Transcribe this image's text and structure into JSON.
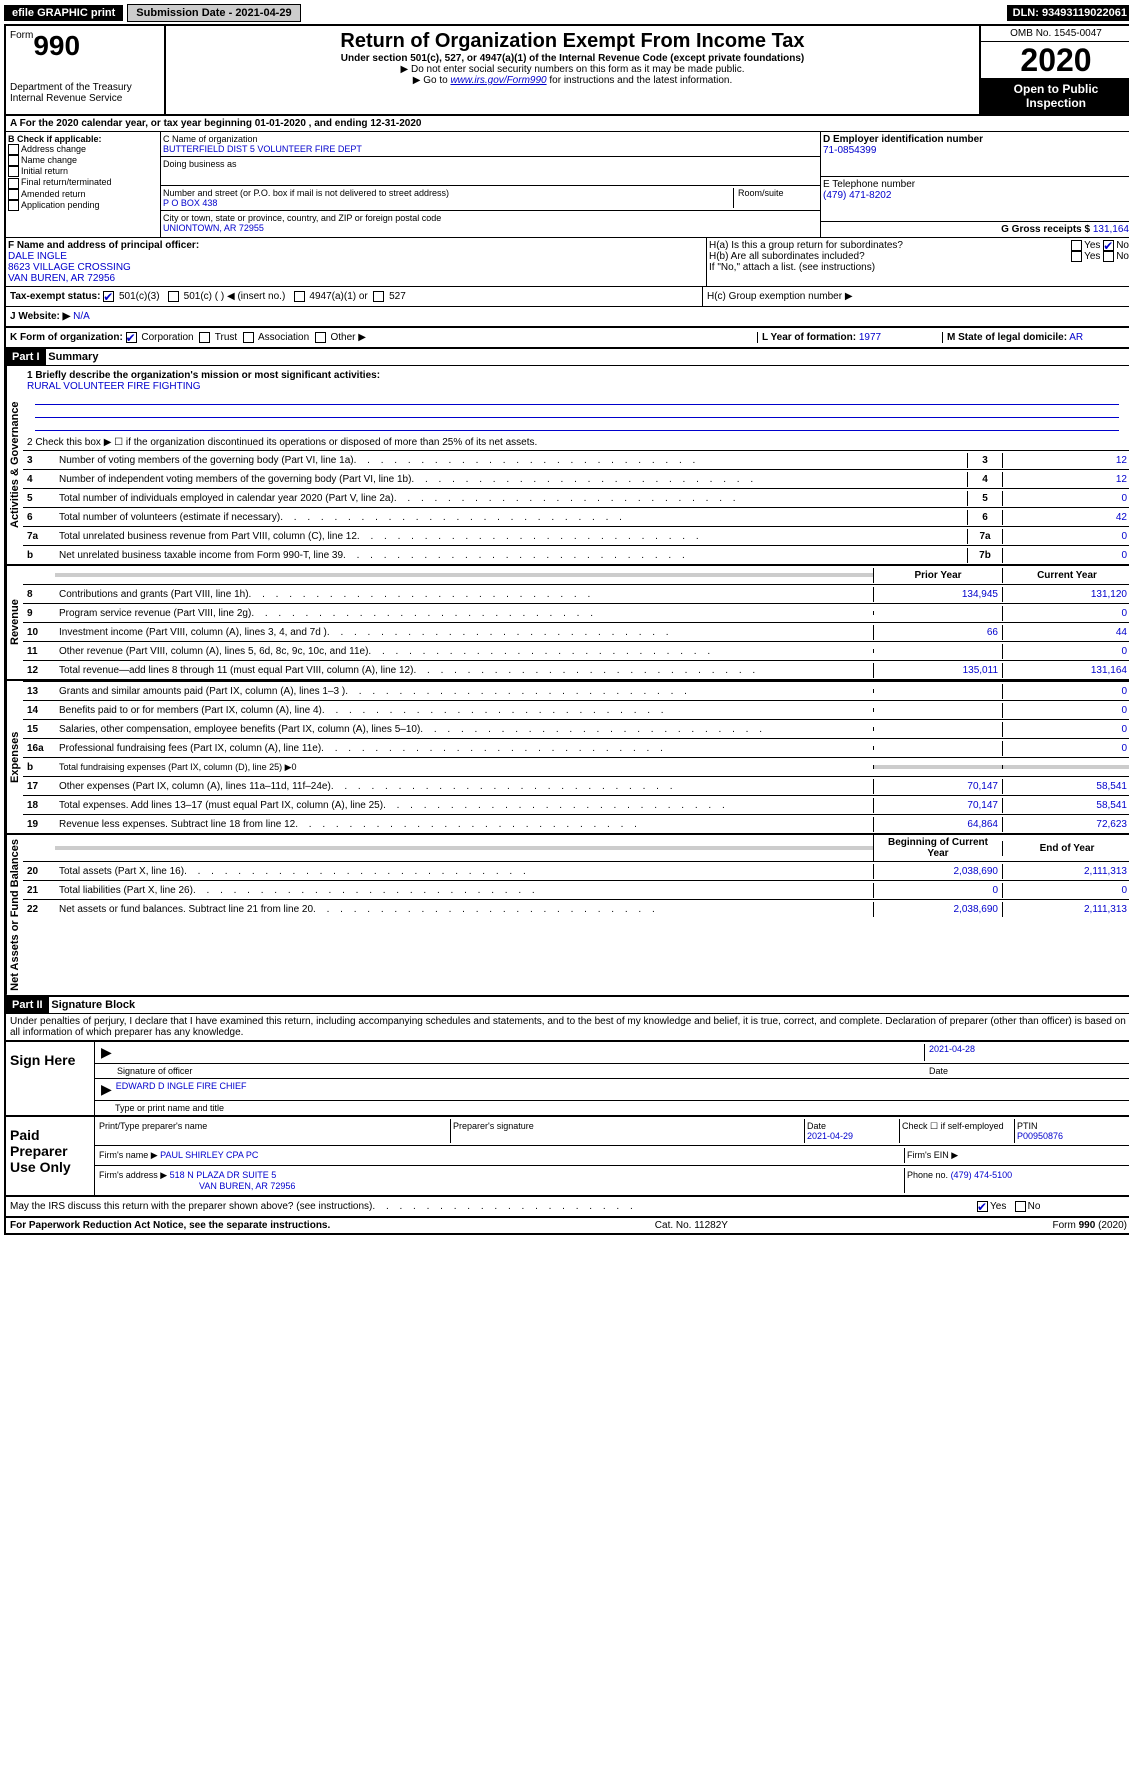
{
  "top": {
    "efile": "efile GRAPHIC print",
    "submission_label": "Submission Date - 2021-04-29",
    "dln": "DLN: 93493119022061"
  },
  "header": {
    "form_word": "Form",
    "form_number": "990",
    "dept": "Department of the Treasury",
    "irs": "Internal Revenue Service",
    "title": "Return of Organization Exempt From Income Tax",
    "subtitle": "Under section 501(c), 527, or 4947(a)(1) of the Internal Revenue Code (except private foundations)",
    "note1": "▶ Do not enter social security numbers on this form as it may be made public.",
    "note2_pre": "▶ Go to ",
    "note2_link": "www.irs.gov/Form990",
    "note2_post": " for instructions and the latest information.",
    "omb": "OMB No. 1545-0047",
    "year": "2020",
    "open": "Open to Public Inspection"
  },
  "a": {
    "text": "A For the 2020 calendar year, or tax year beginning 01-01-2020     , and ending 12-31-2020"
  },
  "b": {
    "label": "B Check if applicable:",
    "items": [
      "Address change",
      "Name change",
      "Initial return",
      "Final return/terminated",
      "Amended return",
      "Application pending"
    ]
  },
  "c": {
    "name_label": "C Name of organization",
    "name": "BUTTERFIELD DIST 5 VOLUNTEER FIRE DEPT",
    "dba_label": "Doing business as",
    "addr_label": "Number and street (or P.O. box if mail is not delivered to street address)",
    "room_label": "Room/suite",
    "addr": "P O BOX 438",
    "city_label": "City or town, state or province, country, and ZIP or foreign postal code",
    "city": "UNIONTOWN, AR  72955"
  },
  "d": {
    "label": "D Employer identification number",
    "value": "71-0854399"
  },
  "e": {
    "label": "E Telephone number",
    "value": "(479) 471-8202"
  },
  "g": {
    "label": "G Gross receipts $",
    "value": "131,164"
  },
  "f": {
    "label": "F Name and address of principal officer:",
    "name": "DALE INGLE",
    "addr1": "8623 VILLAGE CROSSING",
    "addr2": "VAN BUREN, AR  72956"
  },
  "h": {
    "a": "H(a)  Is this a group return for subordinates?",
    "b": "H(b)  Are all subordinates included?",
    "b_note": "If \"No,\" attach a list. (see instructions)",
    "c": "H(c)  Group exemption number ▶",
    "yes": "Yes",
    "no": "No"
  },
  "i": {
    "label": "Tax-exempt status:",
    "o1": "501(c)(3)",
    "o2": "501(c) (   ) ◀ (insert no.)",
    "o3": "4947(a)(1) or",
    "o4": "527"
  },
  "j": {
    "label": "J   Website: ▶",
    "value": "N/A"
  },
  "k": {
    "label": "K Form of organization:",
    "corp": "Corporation",
    "trust": "Trust",
    "assoc": "Association",
    "other": "Other ▶"
  },
  "l": {
    "label": "L Year of formation:",
    "value": "1977"
  },
  "m": {
    "label": "M State of legal domicile:",
    "value": "AR"
  },
  "part1": {
    "header": "Part I",
    "title": "Summary",
    "line1_label": "1  Briefly describe the organization's mission or most significant activities:",
    "line1_value": "RURAL VOLUNTEER FIRE FIGHTING",
    "line2": "2   Check this box ▶ ☐  if the organization discontinued its operations or disposed of more than 25% of its net assets.",
    "sections": {
      "gov": "Activities & Governance",
      "rev": "Revenue",
      "exp": "Expenses",
      "net": "Net Assets or Fund Balances"
    },
    "col_prior": "Prior Year",
    "col_current": "Current Year",
    "col_begin": "Beginning of Current Year",
    "col_end": "End of Year",
    "lines_gov": [
      {
        "n": "3",
        "d": "Number of voting members of the governing body (Part VI, line 1a)",
        "box": "3",
        "v": "12"
      },
      {
        "n": "4",
        "d": "Number of independent voting members of the governing body (Part VI, line 1b)",
        "box": "4",
        "v": "12"
      },
      {
        "n": "5",
        "d": "Total number of individuals employed in calendar year 2020 (Part V, line 2a)",
        "box": "5",
        "v": "0"
      },
      {
        "n": "6",
        "d": "Total number of volunteers (estimate if necessary)",
        "box": "6",
        "v": "42"
      },
      {
        "n": "7a",
        "d": "Total unrelated business revenue from Part VIII, column (C), line 12",
        "box": "7a",
        "v": "0"
      },
      {
        "n": "b",
        "d": "Net unrelated business taxable income from Form 990-T, line 39",
        "box": "7b",
        "v": "0"
      }
    ],
    "lines_rev": [
      {
        "n": "8",
        "d": "Contributions and grants (Part VIII, line 1h)",
        "p": "134,945",
        "c": "131,120"
      },
      {
        "n": "9",
        "d": "Program service revenue (Part VIII, line 2g)",
        "p": "",
        "c": "0"
      },
      {
        "n": "10",
        "d": "Investment income (Part VIII, column (A), lines 3, 4, and 7d )",
        "p": "66",
        "c": "44"
      },
      {
        "n": "11",
        "d": "Other revenue (Part VIII, column (A), lines 5, 6d, 8c, 9c, 10c, and 11e)",
        "p": "",
        "c": "0"
      },
      {
        "n": "12",
        "d": "Total revenue—add lines 8 through 11 (must equal Part VIII, column (A), line 12)",
        "p": "135,011",
        "c": "131,164"
      }
    ],
    "lines_exp": [
      {
        "n": "13",
        "d": "Grants and similar amounts paid (Part IX, column (A), lines 1–3 )",
        "p": "",
        "c": "0"
      },
      {
        "n": "14",
        "d": "Benefits paid to or for members (Part IX, column (A), line 4)",
        "p": "",
        "c": "0"
      },
      {
        "n": "15",
        "d": "Salaries, other compensation, employee benefits (Part IX, column (A), lines 5–10)",
        "p": "",
        "c": "0"
      },
      {
        "n": "16a",
        "d": "Professional fundraising fees (Part IX, column (A), line 11e)",
        "p": "",
        "c": "0"
      }
    ],
    "line16b": {
      "n": "b",
      "d": "Total fundraising expenses (Part IX, column (D), line 25) ▶0"
    },
    "lines_exp2": [
      {
        "n": "17",
        "d": "Other expenses (Part IX, column (A), lines 11a–11d, 11f–24e)",
        "p": "70,147",
        "c": "58,541"
      },
      {
        "n": "18",
        "d": "Total expenses. Add lines 13–17 (must equal Part IX, column (A), line 25)",
        "p": "70,147",
        "c": "58,541"
      },
      {
        "n": "19",
        "d": "Revenue less expenses. Subtract line 18 from line 12",
        "p": "64,864",
        "c": "72,623"
      }
    ],
    "lines_net": [
      {
        "n": "20",
        "d": "Total assets (Part X, line 16)",
        "p": "2,038,690",
        "c": "2,111,313"
      },
      {
        "n": "21",
        "d": "Total liabilities (Part X, line 26)",
        "p": "0",
        "c": "0"
      },
      {
        "n": "22",
        "d": "Net assets or fund balances. Subtract line 21 from line 20",
        "p": "2,038,690",
        "c": "2,111,313"
      }
    ]
  },
  "part2": {
    "header": "Part II",
    "title": "Signature Block",
    "perjury": "Under penalties of perjury, I declare that I have examined this return, including accompanying schedules and statements, and to the best of my knowledge and belief, it is true, correct, and complete. Declaration of preparer (other than officer) is based on all information of which preparer has any knowledge.",
    "sign_here": "Sign Here",
    "sig_officer": "Signature of officer",
    "date": "Date",
    "sig_date": "2021-04-28",
    "officer_name": "EDWARD D INGLE  FIRE CHIEF",
    "type_name": "Type or print name and title",
    "paid": "Paid Preparer Use Only",
    "prep_name_label": "Print/Type preparer's name",
    "prep_sig_label": "Preparer's signature",
    "prep_date_label": "Date",
    "prep_date": "2021-04-29",
    "check_self": "Check ☐ if self-employed",
    "ptin_label": "PTIN",
    "ptin": "P00950876",
    "firm_name_label": "Firm's name    ▶",
    "firm_name": "PAUL SHIRLEY CPA PC",
    "firm_ein_label": "Firm's EIN ▶",
    "firm_addr_label": "Firm's address ▶",
    "firm_addr1": "518 N PLAZA DR SUITE 5",
    "firm_addr2": "VAN BUREN, AR  72956",
    "phone_label": "Phone no.",
    "phone": "(479) 474-5100",
    "discuss": "May the IRS discuss this return with the preparer shown above? (see instructions)",
    "yes": "Yes",
    "no": "No"
  },
  "footer": {
    "pra": "For Paperwork Reduction Act Notice, see the separate instructions.",
    "cat": "Cat. No. 11282Y",
    "form": "Form 990 (2020)"
  }
}
